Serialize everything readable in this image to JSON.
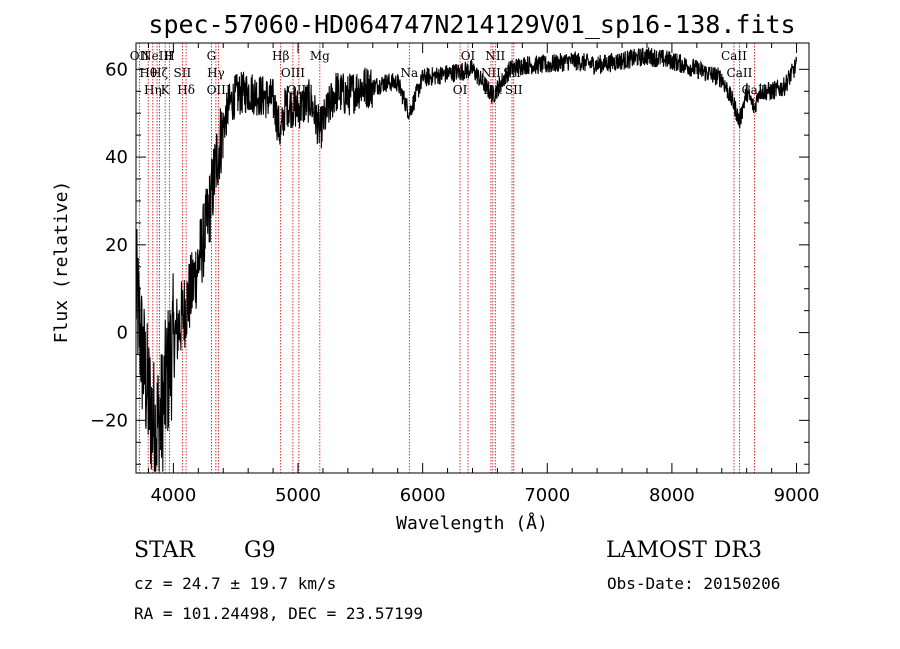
{
  "chart_data": {
    "type": "line",
    "title": "spec-57060-HD064747N214129V01_sp16-138.fits",
    "xlabel": "Wavelength (Å)",
    "ylabel": "Flux (relative)",
    "xlim": [
      3700,
      9100
    ],
    "ylim": [
      -32,
      66
    ],
    "x_ticks": [
      4000,
      5000,
      6000,
      7000,
      8000,
      9000
    ],
    "y_ticks": [
      -20,
      0,
      20,
      40,
      60
    ],
    "spectrum_anchor_points": {
      "wavelength": [
        3700,
        3750,
        3800,
        3850,
        3900,
        3950,
        4000,
        4050,
        4100,
        4150,
        4200,
        4250,
        4300,
        4350,
        4400,
        4450,
        4500,
        4600,
        4700,
        4800,
        4861,
        4900,
        5000,
        5100,
        5175,
        5300,
        5400,
        5500,
        5600,
        5700,
        5800,
        5893,
        6000,
        6200,
        6400,
        6563,
        6700,
        6800,
        7000,
        7200,
        7400,
        7600,
        7800,
        8000,
        8200,
        8400,
        8498,
        8542,
        8600,
        8662,
        8700,
        8800,
        8900,
        8980,
        9000
      ],
      "flux": [
        10,
        -5,
        -15,
        -22,
        -20,
        -10,
        -2,
        2,
        6,
        10,
        16,
        22,
        30,
        40,
        47,
        52,
        54,
        55,
        54,
        53,
        45,
        52,
        51,
        53,
        46,
        55,
        54,
        56,
        56,
        57,
        57,
        50,
        58,
        59,
        60,
        54,
        60,
        61,
        61,
        62,
        61,
        62,
        63,
        62,
        60,
        58,
        52,
        48,
        55,
        51,
        55,
        55,
        56,
        60,
        61
      ]
    },
    "spectral_lines": [
      {
        "wavelength": 3727,
        "label": "OII"
      },
      {
        "wavelength": 3798,
        "label": "Hθ"
      },
      {
        "wavelength": 3835,
        "label": "Hη"
      },
      {
        "wavelength": 3869,
        "label": "NeIII"
      },
      {
        "wavelength": 3889,
        "label": "Hζ"
      },
      {
        "wavelength": 3934,
        "label": "K"
      },
      {
        "wavelength": 3969,
        "label": "H"
      },
      {
        "wavelength": 4072,
        "label": "SII"
      },
      {
        "wavelength": 4102,
        "label": "Hδ"
      },
      {
        "wavelength": 4305,
        "label": "G"
      },
      {
        "wavelength": 4341,
        "label": "Hγ"
      },
      {
        "wavelength": 4363,
        "label": "OIII"
      },
      {
        "wavelength": 4861,
        "label": "Hβ"
      },
      {
        "wavelength": 4959,
        "label": "OIII"
      },
      {
        "wavelength": 5007,
        "label": "OIII"
      },
      {
        "wavelength": 5175,
        "label": "Mg"
      },
      {
        "wavelength": 5893,
        "label": "Na"
      },
      {
        "wavelength": 6300,
        "label": "OI"
      },
      {
        "wavelength": 6364,
        "label": "OI"
      },
      {
        "wavelength": 6548,
        "label": "NII"
      },
      {
        "wavelength": 6563,
        "label": "Hα"
      },
      {
        "wavelength": 6583,
        "label": "NII"
      },
      {
        "wavelength": 6717,
        "label": "SII"
      },
      {
        "wavelength": 6731,
        "label": "SII"
      },
      {
        "wavelength": 8498,
        "label": "CaII"
      },
      {
        "wavelength": 8542,
        "label": "CaII"
      },
      {
        "wavelength": 8662,
        "label": "CaII"
      }
    ],
    "line_color": "#000000",
    "marker_color": "#cc0000"
  },
  "info": {
    "class": "STAR",
    "subclass": "G9",
    "survey": "LAMOST DR3",
    "cz": "cz = 24.7 ± 19.7 km/s",
    "obs_date": "Obs-Date: 20150206",
    "coords": "RA = 101.24498, DEC =  23.57199"
  }
}
